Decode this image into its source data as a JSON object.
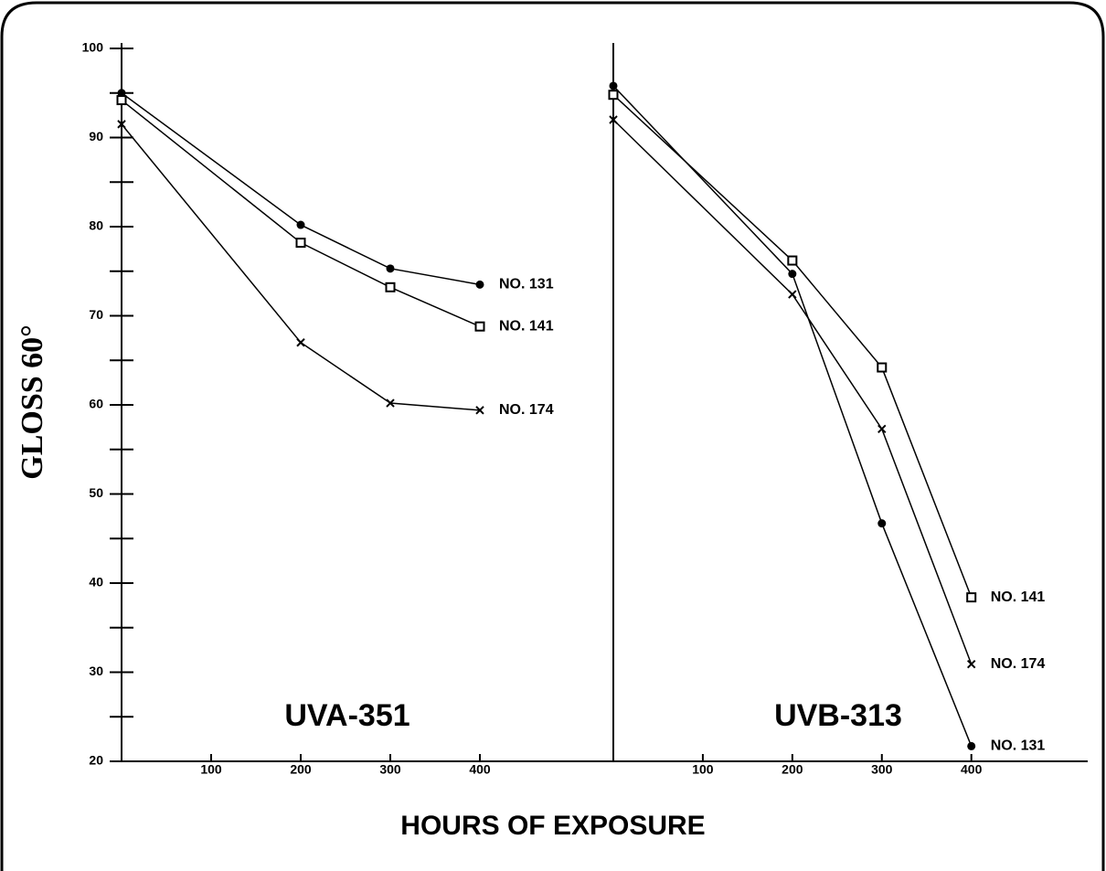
{
  "chart_data": [
    {
      "type": "line",
      "title": "UVA-351",
      "ylabel": "GLOSS 60°",
      "xlabel": "HOURS OF EXPOSURE",
      "x": [
        0,
        200,
        300,
        400
      ],
      "xlim": [
        0,
        550
      ],
      "xticks": [
        100,
        200,
        300,
        400
      ],
      "ylim": [
        20,
        100
      ],
      "yticks": [
        20,
        30,
        40,
        50,
        60,
        70,
        80,
        90,
        100
      ],
      "minor_yticks": [
        25,
        35,
        45,
        55,
        65,
        75,
        85,
        95
      ],
      "series": [
        {
          "name": "NO. 131",
          "color": "#000000",
          "marker": "circle",
          "values": [
            95.0,
            80.2,
            75.3,
            73.5
          ]
        },
        {
          "name": "NO. 141",
          "color": "#000000",
          "marker": "square",
          "values": [
            94.2,
            78.2,
            73.2,
            68.8
          ]
        },
        {
          "name": "NO. 174",
          "color": "#000000",
          "marker": "x",
          "values": [
            91.5,
            67.0,
            60.2,
            59.4
          ]
        }
      ]
    },
    {
      "type": "line",
      "title": "UVB-313",
      "x": [
        0,
        200,
        300,
        400
      ],
      "xlim": [
        0,
        530
      ],
      "xticks": [
        100,
        200,
        300,
        400
      ],
      "ylim": [
        20,
        100
      ],
      "series": [
        {
          "name": "NO. 141",
          "color": "#000000",
          "marker": "square",
          "values": [
            94.8,
            76.2,
            64.2,
            38.4
          ]
        },
        {
          "name": "NO. 174",
          "color": "#000000",
          "marker": "x",
          "values": [
            92.0,
            72.4,
            57.3,
            30.9
          ]
        },
        {
          "name": "NO. 131",
          "color": "#000000",
          "marker": "circle",
          "values": [
            95.8,
            74.7,
            46.7,
            21.7
          ]
        }
      ]
    }
  ]
}
